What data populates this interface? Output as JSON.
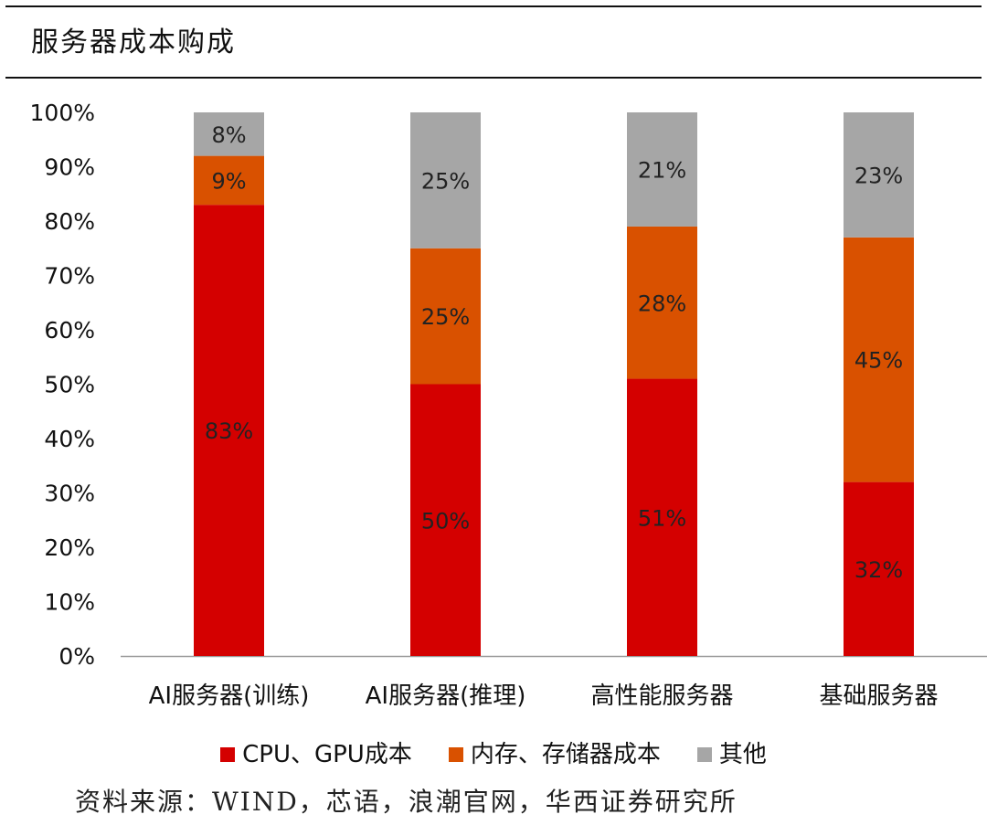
{
  "title": "服务器成本购成",
  "source_note": "资料来源：WIND，芯语，浪潮官网，华西证券研究所",
  "colors": {
    "cpu_gpu": "#d40000",
    "memory_storage": "#d95100",
    "other": "#a6a6a6",
    "axis": "#999999"
  },
  "chart_data": {
    "type": "bar",
    "stacked": true,
    "categories": [
      "AI服务器(训练)",
      "AI服务器(推理)",
      "高性能服务器",
      "基础服务器"
    ],
    "series": [
      {
        "name": "CPU、GPU成本",
        "values": [
          83,
          50,
          51,
          32
        ],
        "labels": [
          "83%",
          "50%",
          "51%",
          "32%"
        ]
      },
      {
        "name": "内存、存储器成本",
        "values": [
          9,
          25,
          28,
          45
        ],
        "labels": [
          "9%",
          "25%",
          "28%",
          "45%"
        ]
      },
      {
        "name": "其他",
        "values": [
          8,
          25,
          21,
          23
        ],
        "labels": [
          "8%",
          "25%",
          "21%",
          "23%"
        ]
      }
    ],
    "ylim": [
      0,
      100
    ],
    "yticks": [
      "0%",
      "10%",
      "20%",
      "30%",
      "40%",
      "50%",
      "60%",
      "70%",
      "80%",
      "90%",
      "100%"
    ],
    "legend_position": "bottom",
    "grid": false
  }
}
